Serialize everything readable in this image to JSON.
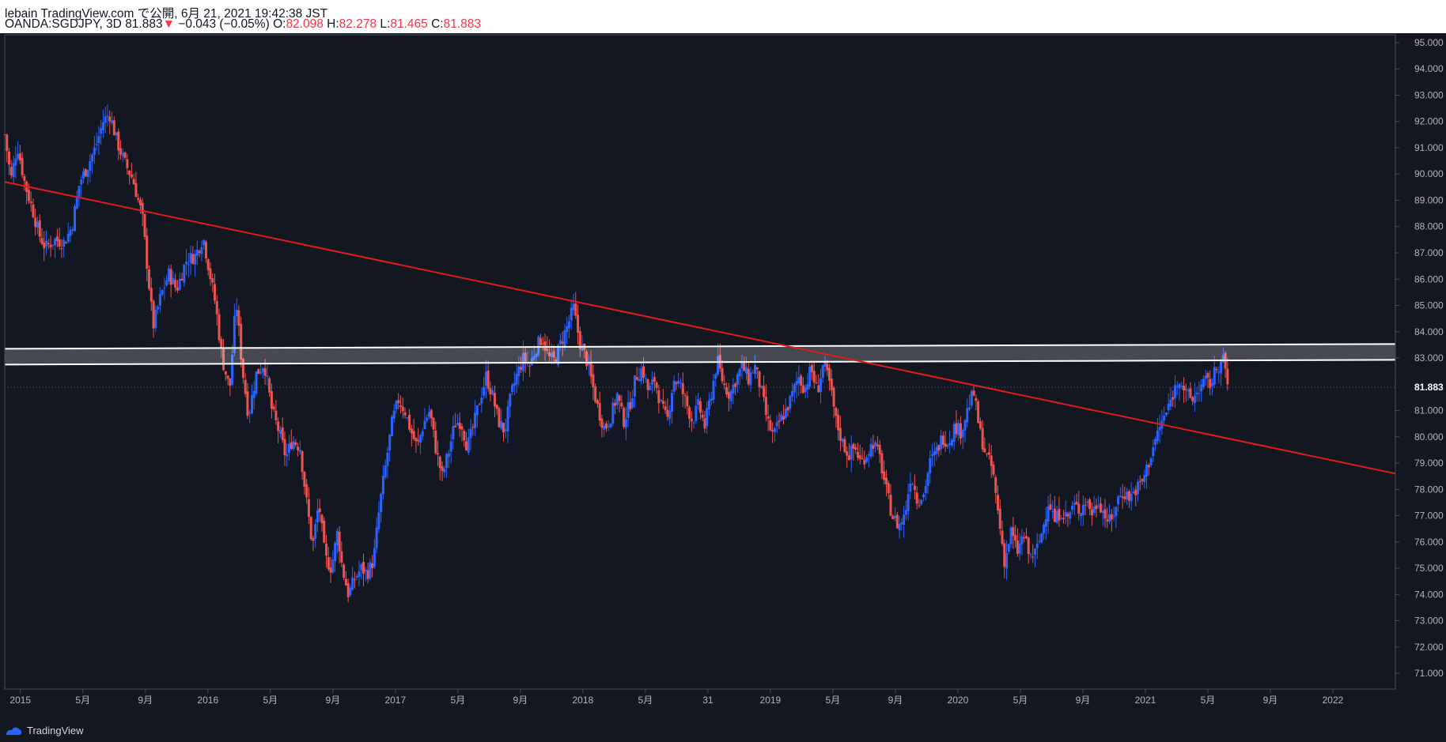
{
  "header": {
    "published": "lebain TradingView.com で公開, 6月 21, 2021 19:42:38 JST",
    "symbol": "OANDA:SGDJPY, 3D",
    "last": "81.883",
    "change_arrow": "▼",
    "change": "−0.043 (−0.05%)",
    "o_label": "O:",
    "o_value": "82.098",
    "h_label": "H:",
    "h_value": "82.278",
    "l_label": "L:",
    "l_value": "81.465",
    "c_label": "C:",
    "c_value": "81.883"
  },
  "footer": {
    "brand": "TradingView",
    "logo_icon": "tradingview-logo-icon"
  },
  "colors": {
    "background": "#131722",
    "up": "#2962ff",
    "down": "#ef5350",
    "trendline": "#e21b1b",
    "zone": "#ffffff",
    "axis_text": "#b2b5be",
    "border": "#4a4e59"
  },
  "chart_data": {
    "type": "candlestick",
    "symbol": "OANDA:SGDJPY",
    "interval": "3D",
    "ylim": [
      70.4,
      95.3
    ],
    "y_ticks": [
      "71.000",
      "72.000",
      "73.000",
      "74.000",
      "75.000",
      "76.000",
      "77.000",
      "78.000",
      "79.000",
      "80.000",
      "81.000",
      "82.000",
      "83.000",
      "84.000",
      "85.000",
      "86.000",
      "87.000",
      "88.000",
      "89.000",
      "90.000",
      "91.000",
      "92.000",
      "93.000",
      "94.000",
      "95.000"
    ],
    "x_ticks": [
      {
        "label": "2015",
        "t": 0.0
      },
      {
        "label": "5月",
        "t": 4.0
      },
      {
        "label": "9月",
        "t": 8.0
      },
      {
        "label": "2016",
        "t": 12.0
      },
      {
        "label": "5月",
        "t": 16.0
      },
      {
        "label": "9月",
        "t": 20.0
      },
      {
        "label": "2017",
        "t": 24.0
      },
      {
        "label": "5月",
        "t": 28.0
      },
      {
        "label": "9月",
        "t": 32.0
      },
      {
        "label": "2018",
        "t": 36.0
      },
      {
        "label": "5月",
        "t": 40.0
      },
      {
        "label": "31",
        "t": 44.0
      },
      {
        "label": "2019",
        "t": 48.0
      },
      {
        "label": "5月",
        "t": 52.0
      },
      {
        "label": "9月",
        "t": 56.0
      },
      {
        "label": "2020",
        "t": 60.0
      },
      {
        "label": "5月",
        "t": 64.0
      },
      {
        "label": "9月",
        "t": 68.0
      },
      {
        "label": "2021",
        "t": 72.0
      },
      {
        "label": "5月",
        "t": 76.0
      },
      {
        "label": "9月",
        "t": 80.0
      },
      {
        "label": "2022",
        "t": 84.0
      }
    ],
    "t_range": [
      -1.0,
      88.0
    ],
    "price_path": [
      [
        -1.0,
        91.5
      ],
      [
        -0.6,
        89.8
      ],
      [
        -0.2,
        91.1
      ],
      [
        0.3,
        89.6
      ],
      [
        0.8,
        88.6
      ],
      [
        1.2,
        87.7
      ],
      [
        1.6,
        87.2
      ],
      [
        2.2,
        87.5
      ],
      [
        2.8,
        87.4
      ],
      [
        3.3,
        88.0
      ],
      [
        3.8,
        89.7
      ],
      [
        4.3,
        90.3
      ],
      [
        4.8,
        91.0
      ],
      [
        5.3,
        92.0
      ],
      [
        5.7,
        92.3
      ],
      [
        6.2,
        91.2
      ],
      [
        6.7,
        90.4
      ],
      [
        7.2,
        89.8
      ],
      [
        7.8,
        88.4
      ],
      [
        8.2,
        86.0
      ],
      [
        8.5,
        84.2
      ],
      [
        9.0,
        85.4
      ],
      [
        9.5,
        86.2
      ],
      [
        10.0,
        85.6
      ],
      [
        10.6,
        86.7
      ],
      [
        11.2,
        86.9
      ],
      [
        11.7,
        87.6
      ],
      [
        12.1,
        86.3
      ],
      [
        12.5,
        85.0
      ],
      [
        12.9,
        83.0
      ],
      [
        13.4,
        81.8
      ],
      [
        13.8,
        85.2
      ],
      [
        14.2,
        82.6
      ],
      [
        14.6,
        80.8
      ],
      [
        15.1,
        82.4
      ],
      [
        15.6,
        82.8
      ],
      [
        16.1,
        81.0
      ],
      [
        16.6,
        80.1
      ],
      [
        17.0,
        79.2
      ],
      [
        17.4,
        79.9
      ],
      [
        17.9,
        79.6
      ],
      [
        18.3,
        77.6
      ],
      [
        18.7,
        75.8
      ],
      [
        19.1,
        77.5
      ],
      [
        19.5,
        75.4
      ],
      [
        19.9,
        75.0
      ],
      [
        20.3,
        76.4
      ],
      [
        20.6,
        75.0
      ],
      [
        21.0,
        74.0
      ],
      [
        21.4,
        74.6
      ],
      [
        21.8,
        75.0
      ],
      [
        22.2,
        74.8
      ],
      [
        22.6,
        75.3
      ],
      [
        23.0,
        77.4
      ],
      [
        23.4,
        79.0
      ],
      [
        23.8,
        80.6
      ],
      [
        24.2,
        81.4
      ],
      [
        24.6,
        81.0
      ],
      [
        25.0,
        80.2
      ],
      [
        25.4,
        79.6
      ],
      [
        25.8,
        80.5
      ],
      [
        26.2,
        81.0
      ],
      [
        26.6,
        79.5
      ],
      [
        27.0,
        78.5
      ],
      [
        27.4,
        79.4
      ],
      [
        27.8,
        80.5
      ],
      [
        28.2,
        80.6
      ],
      [
        28.6,
        79.6
      ],
      [
        29.0,
        80.4
      ],
      [
        29.4,
        81.4
      ],
      [
        29.8,
        82.3
      ],
      [
        30.2,
        81.6
      ],
      [
        30.6,
        80.6
      ],
      [
        31.0,
        80.2
      ],
      [
        31.4,
        81.6
      ],
      [
        31.8,
        82.4
      ],
      [
        32.2,
        83.0
      ],
      [
        32.6,
        82.7
      ],
      [
        33.0,
        83.4
      ],
      [
        33.4,
        83.8
      ],
      [
        33.8,
        83.0
      ],
      [
        34.2,
        82.9
      ],
      [
        34.6,
        83.6
      ],
      [
        35.0,
        84.2
      ],
      [
        35.4,
        84.9
      ],
      [
        35.8,
        83.6
      ],
      [
        36.2,
        83.0
      ],
      [
        36.6,
        82.0
      ],
      [
        37.0,
        81.0
      ],
      [
        37.4,
        80.3
      ],
      [
        37.8,
        80.8
      ],
      [
        38.2,
        81.6
      ],
      [
        38.6,
        80.6
      ],
      [
        39.0,
        81.2
      ],
      [
        39.4,
        82.3
      ],
      [
        39.8,
        82.6
      ],
      [
        40.2,
        81.7
      ],
      [
        40.6,
        82.2
      ],
      [
        41.0,
        81.2
      ],
      [
        41.4,
        80.6
      ],
      [
        41.8,
        82.2
      ],
      [
        42.2,
        82.0
      ],
      [
        42.6,
        81.3
      ],
      [
        43.0,
        80.6
      ],
      [
        43.4,
        81.2
      ],
      [
        43.8,
        80.4
      ],
      [
        44.2,
        81.6
      ],
      [
        44.6,
        82.9
      ],
      [
        45.0,
        82.0
      ],
      [
        45.4,
        81.6
      ],
      [
        45.8,
        82.2
      ],
      [
        46.2,
        82.7
      ],
      [
        46.6,
        82.2
      ],
      [
        47.0,
        82.7
      ],
      [
        47.4,
        81.8
      ],
      [
        47.8,
        80.6
      ],
      [
        48.2,
        80.0
      ],
      [
        48.6,
        80.6
      ],
      [
        49.0,
        81.0
      ],
      [
        49.4,
        81.6
      ],
      [
        49.8,
        82.3
      ],
      [
        50.2,
        81.8
      ],
      [
        50.6,
        82.6
      ],
      [
        51.0,
        81.7
      ],
      [
        51.4,
        82.8
      ],
      [
        51.8,
        82.0
      ],
      [
        52.2,
        80.6
      ],
      [
        52.6,
        79.8
      ],
      [
        53.0,
        79.3
      ],
      [
        53.4,
        79.6
      ],
      [
        53.8,
        79.0
      ],
      [
        54.2,
        79.4
      ],
      [
        54.6,
        79.8
      ],
      [
        55.0,
        79.2
      ],
      [
        55.4,
        78.0
      ],
      [
        55.8,
        77.0
      ],
      [
        56.2,
        76.6
      ],
      [
        56.6,
        77.0
      ],
      [
        57.0,
        78.6
      ],
      [
        57.4,
        77.6
      ],
      [
        57.8,
        77.8
      ],
      [
        58.2,
        79.0
      ],
      [
        58.6,
        79.4
      ],
      [
        59.0,
        80.0
      ],
      [
        59.4,
        79.8
      ],
      [
        59.8,
        80.4
      ],
      [
        60.2,
        80.2
      ],
      [
        60.6,
        81.0
      ],
      [
        61.0,
        81.7
      ],
      [
        61.4,
        80.2
      ],
      [
        61.8,
        79.3
      ],
      [
        62.2,
        78.8
      ],
      [
        62.6,
        77.0
      ],
      [
        63.0,
        75.2
      ],
      [
        63.4,
        76.4
      ],
      [
        63.8,
        75.6
      ],
      [
        64.2,
        76.3
      ],
      [
        64.6,
        75.4
      ],
      [
        65.0,
        75.6
      ],
      [
        65.4,
        76.4
      ],
      [
        65.8,
        77.6
      ],
      [
        66.2,
        76.8
      ],
      [
        66.6,
        77.2
      ],
      [
        67.0,
        76.9
      ],
      [
        67.4,
        77.4
      ],
      [
        67.8,
        77.2
      ],
      [
        68.2,
        77.6
      ],
      [
        68.6,
        77.1
      ],
      [
        69.0,
        77.6
      ],
      [
        69.4,
        77.0
      ],
      [
        69.8,
        76.7
      ],
      [
        70.2,
        77.6
      ],
      [
        70.6,
        77.9
      ],
      [
        71.0,
        77.7
      ],
      [
        71.4,
        78.0
      ],
      [
        71.8,
        78.3
      ],
      [
        72.2,
        79.0
      ],
      [
        72.6,
        79.8
      ],
      [
        73.0,
        80.5
      ],
      [
        73.4,
        81.0
      ],
      [
        73.8,
        81.7
      ],
      [
        74.2,
        82.3
      ],
      [
        74.6,
        81.6
      ],
      [
        75.0,
        81.4
      ],
      [
        75.4,
        81.8
      ],
      [
        75.8,
        82.1
      ],
      [
        76.2,
        82.0
      ],
      [
        76.6,
        82.7
      ],
      [
        77.0,
        82.9
      ],
      [
        77.3,
        81.9
      ]
    ],
    "zone": {
      "upper": 83.35,
      "lower": 82.75,
      "t_start": -1.0,
      "t_end": 88.0
    },
    "trendline": {
      "t1": -1.0,
      "p1": 89.7,
      "t2": 88.0,
      "p2": 78.6
    },
    "last_price_label": "81.883"
  }
}
